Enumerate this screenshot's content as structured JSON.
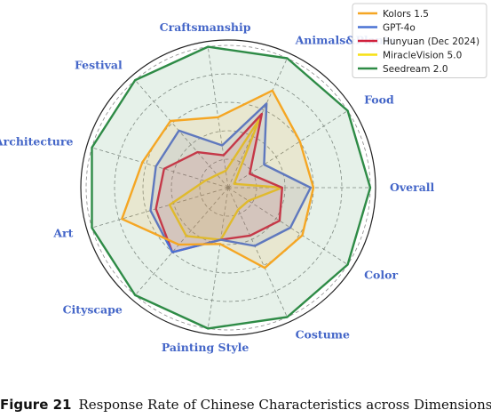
{
  "caption": {
    "figure": "Figure 21",
    "text": "Response Rate of Chinese Characteristics across Dimensions."
  },
  "chart_data": {
    "type": "radar",
    "categories": [
      "Overall",
      "Food",
      "Animals&Plants",
      "Craftsmanship",
      "Festival",
      "Architecture",
      "Art",
      "Cityscape",
      "Painting Style",
      "Costume",
      "Color"
    ],
    "rlim": [
      0,
      1
    ],
    "grid": true,
    "legend_position": "top-right",
    "series": [
      {
        "name": "Kolors 1.5",
        "color": "#f5a623",
        "values": [
          0.6,
          0.6,
          0.75,
          0.5,
          0.62,
          0.63,
          0.78,
          0.53,
          0.4,
          0.62,
          0.62
        ]
      },
      {
        "name": "GPT-4o",
        "color": "#4a72d4",
        "values": [
          0.58,
          0.3,
          0.65,
          0.3,
          0.53,
          0.53,
          0.57,
          0.6,
          0.37,
          0.45,
          0.52
        ]
      },
      {
        "name": "Hunyuan (Dec 2024)",
        "color": "#d0203c",
        "values": [
          0.38,
          0.18,
          0.57,
          0.23,
          0.33,
          0.47,
          0.53,
          0.6,
          0.37,
          0.37,
          0.43
        ]
      },
      {
        "name": "MiracleVision 5.0",
        "color": "#f7e014",
        "values": [
          0.38,
          0.05,
          0.53,
          0.12,
          0.12,
          0.17,
          0.43,
          0.45,
          0.37,
          0.17,
          0.17
        ]
      },
      {
        "name": "Seedream 2.0",
        "color": "#2e8b46",
        "values": [
          1.0,
          1.0,
          1.0,
          1.0,
          1.0,
          1.0,
          1.0,
          1.0,
          1.0,
          1.0,
          1.0
        ]
      }
    ]
  }
}
